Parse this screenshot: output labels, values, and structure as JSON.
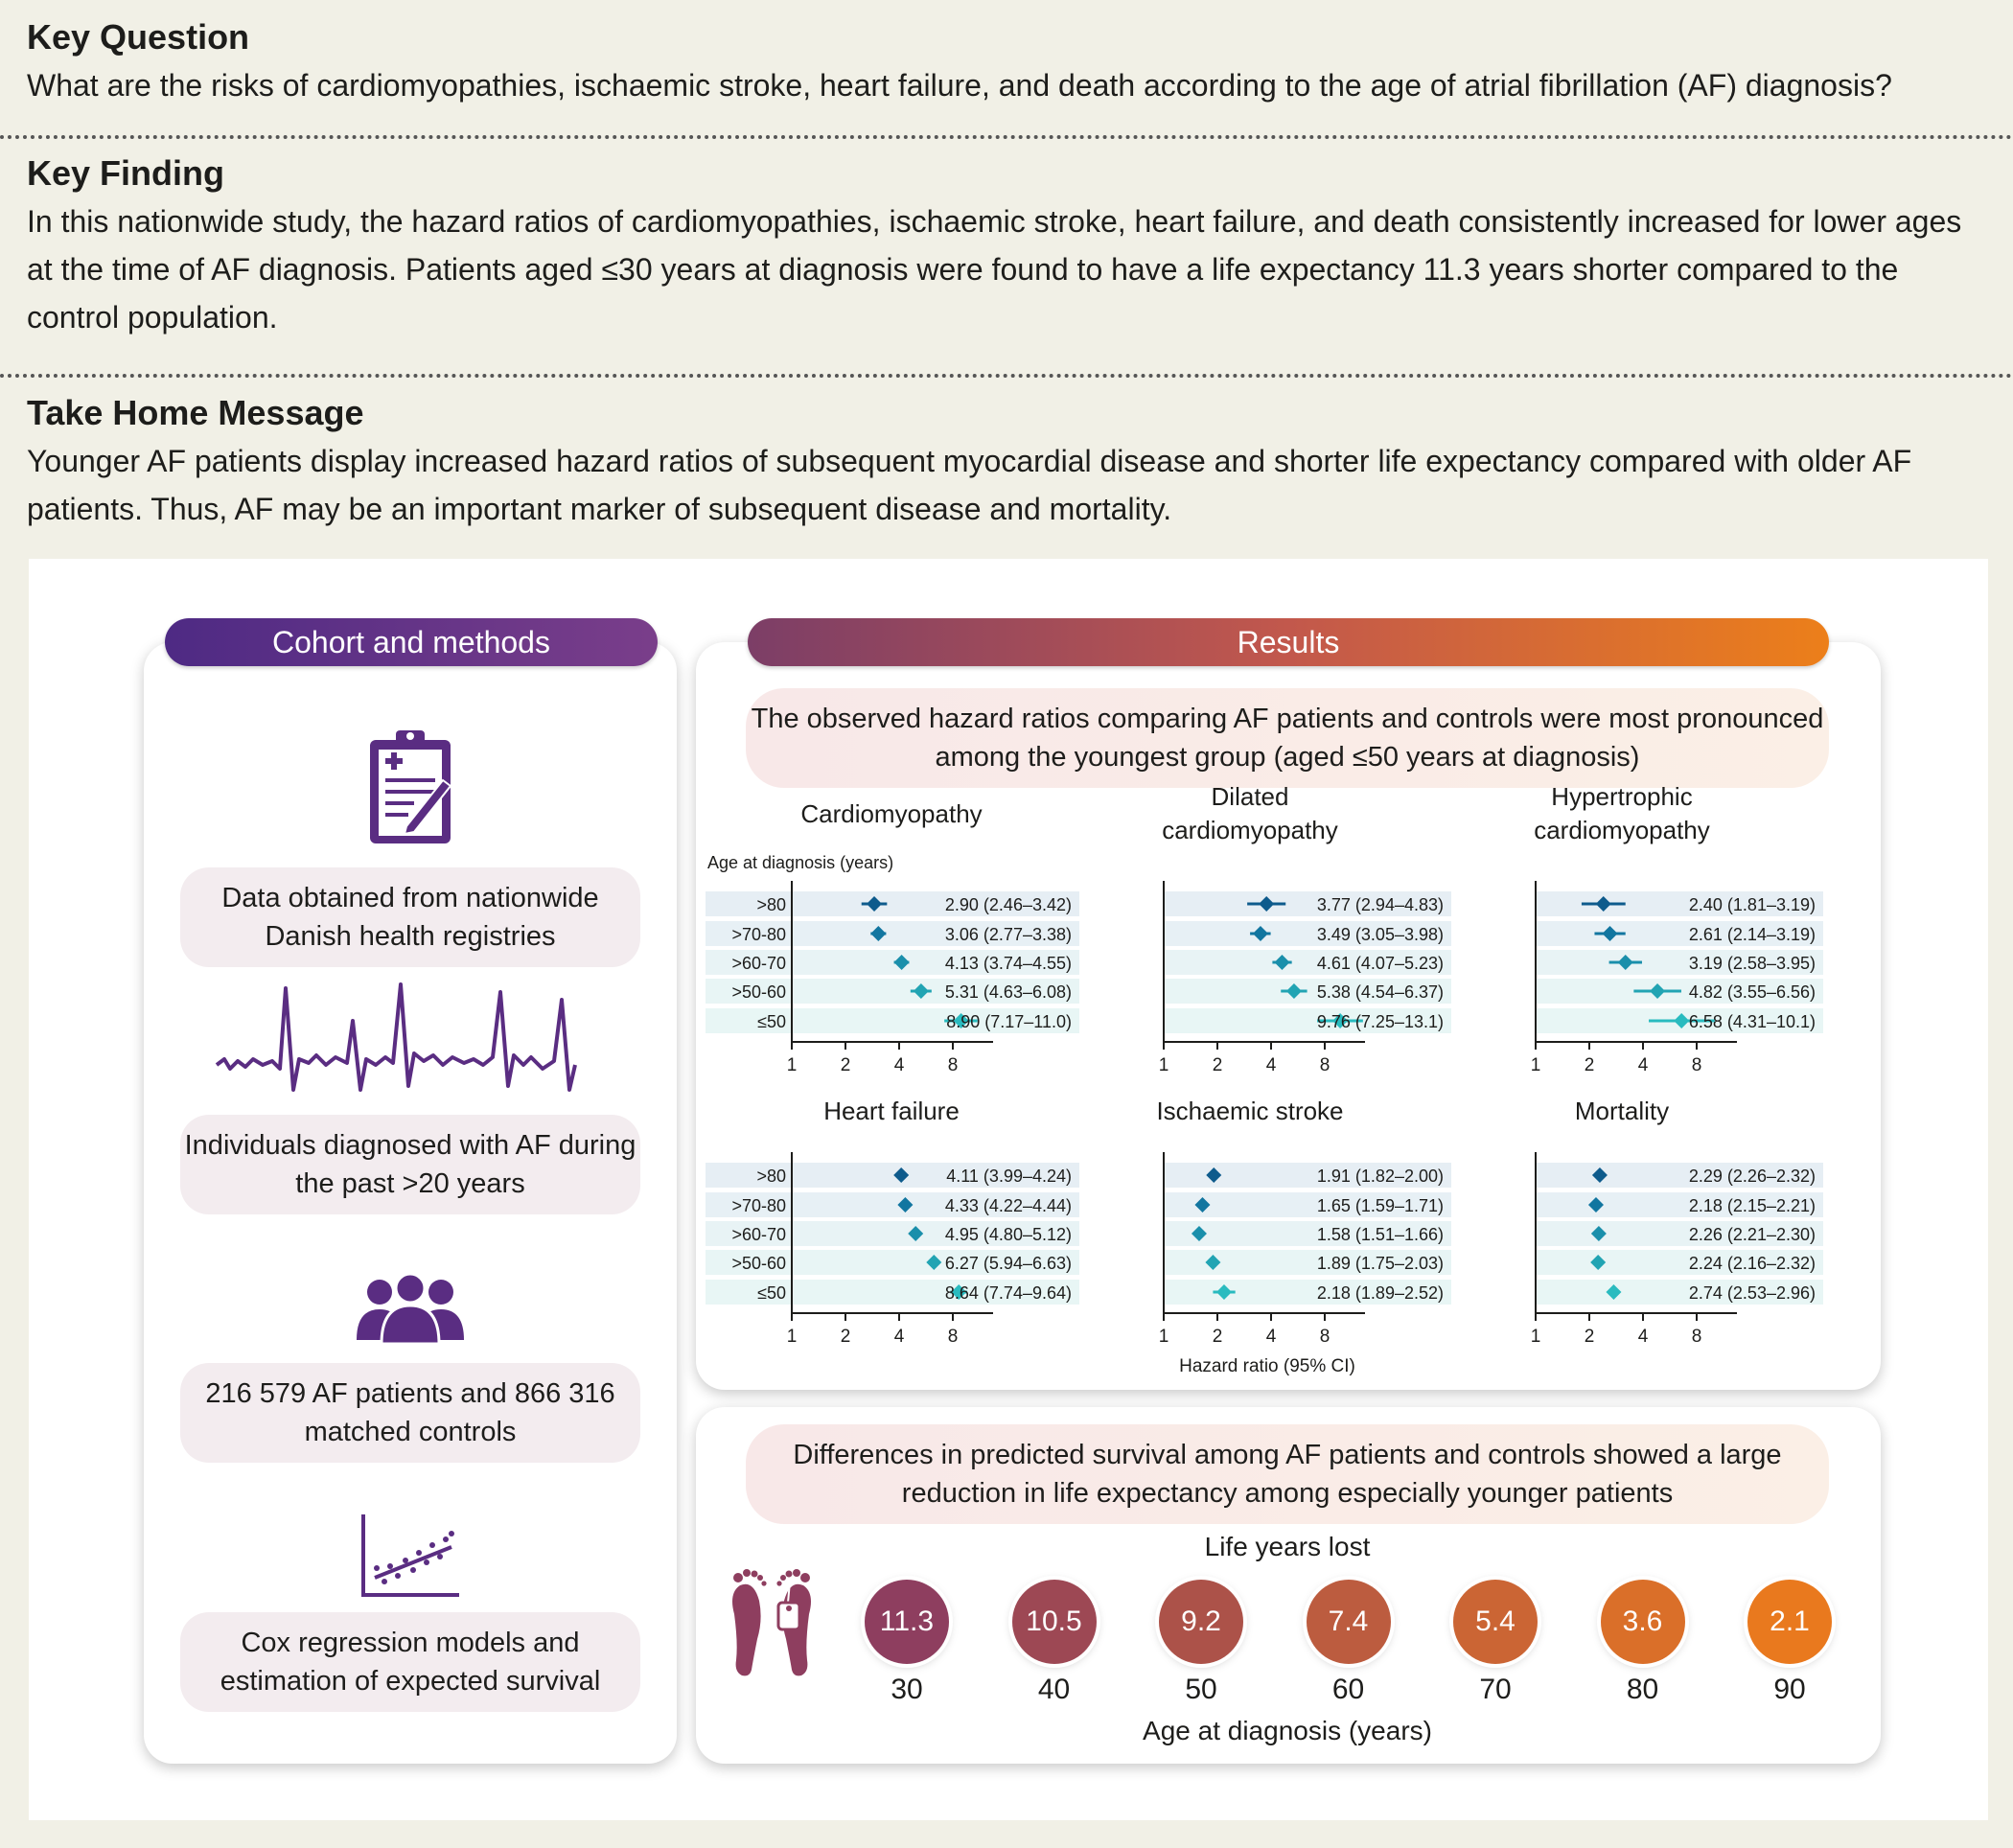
{
  "key_question": {
    "title": "Key Question",
    "text": "What are the risks of cardiomyopathies, ischaemic stroke, heart failure, and death according to the age of atrial fibrillation (AF) diagnosis?"
  },
  "key_finding": {
    "title": "Key Finding",
    "text": "In this nationwide study, the hazard ratios of cardiomyopathies, ischaemic stroke, heart failure, and death consistently increased for lower ages at the time of AF diagnosis. Patients aged ≤30 years at diagnosis were found to have a life expectancy 11.3 years shorter compared to the control population."
  },
  "take_home": {
    "title": "Take Home Message",
    "text": "Younger AF patients display increased hazard ratios of subsequent myocardial disease and shorter life expectancy compared with older AF patients. Thus, AF may be an important marker of subsequent disease and mortality."
  },
  "cohort": {
    "header": "Cohort and methods",
    "items": [
      {
        "icon": "clipboard-icon",
        "text": "Data obtained from nationwide Danish health registries"
      },
      {
        "icon": "ecg-icon",
        "text": "Individuals diagnosed with AF during the past >20 years"
      },
      {
        "icon": "people-icon",
        "text": "216 579 AF patients and 866 316 matched controls"
      },
      {
        "icon": "regression-chart-icon",
        "text": "Cox regression models and estimation of expected survival"
      }
    ]
  },
  "results": {
    "header": "Results",
    "hr_summary": "The observed hazard ratios comparing AF patients and controls were most pronounced among the youngest group (aged ≤50 years at diagnosis)",
    "survival_summary": "Differences in predicted survival among AF patients and controls showed a large reduction in life expectancy among especially younger patients",
    "age_axis_label": "Age at diagnosis (years)",
    "hr_axis_label": "Hazard ratio (95% CI)",
    "life_years_title": "Life years lost",
    "life_years_xlabel": "Age at diagnosis (years)",
    "colors": {
      "purple": "#5a2d82",
      "rose": "#8e3e5f",
      "orange": "#e9791e",
      "dark_blue": "#0e5b8c",
      "teal": "#1fa8b4"
    }
  },
  "chart_data": [
    {
      "type": "scatter",
      "title": "Cardiomyopathy",
      "categories": [
        ">80",
        ">70-80",
        ">60-70",
        ">50-60",
        "≤50"
      ],
      "hr": [
        2.9,
        3.06,
        4.13,
        5.31,
        8.9
      ],
      "lo": [
        2.46,
        2.77,
        3.74,
        4.63,
        7.17
      ],
      "hi": [
        3.42,
        3.38,
        4.55,
        6.08,
        11.0
      ],
      "labels": [
        "2.90 (2.46–3.42)",
        "3.06 (2.77–3.38)",
        "4.13 (3.74–4.55)",
        "5.31 (4.63–6.08)",
        "8.90 (7.17–11.0)"
      ],
      "x_ticks": [
        "1",
        "2",
        "4",
        "8"
      ],
      "x_scale": "log2",
      "xlim": [
        1,
        12
      ]
    },
    {
      "type": "scatter",
      "title": "Dilated cardiomyopathy",
      "categories": [
        ">80",
        ">70-80",
        ">60-70",
        ">50-60",
        "≤50"
      ],
      "hr": [
        3.77,
        3.49,
        4.61,
        5.38,
        9.76
      ],
      "lo": [
        2.94,
        3.05,
        4.07,
        4.54,
        7.25
      ],
      "hi": [
        4.83,
        3.98,
        5.23,
        6.37,
        13.1
      ],
      "labels": [
        "3.77 (2.94–4.83)",
        "3.49 (3.05–3.98)",
        "4.61 (4.07–5.23)",
        "5.38 (4.54–6.37)",
        "9.76 (7.25–13.1)"
      ],
      "x_ticks": [
        "1",
        "2",
        "4",
        "8"
      ],
      "x_scale": "log2",
      "xlim": [
        1,
        12
      ]
    },
    {
      "type": "scatter",
      "title": "Hypertrophic cardiomyopathy",
      "categories": [
        ">80",
        ">70-80",
        ">60-70",
        ">50-60",
        "≤50"
      ],
      "hr": [
        2.4,
        2.61,
        3.19,
        4.82,
        6.58
      ],
      "lo": [
        1.81,
        2.14,
        2.58,
        3.55,
        4.31
      ],
      "hi": [
        3.19,
        3.19,
        3.95,
        6.56,
        10.1
      ],
      "labels": [
        "2.40 (1.81–3.19)",
        "2.61 (2.14–3.19)",
        "3.19 (2.58–3.95)",
        "4.82 (3.55–6.56)",
        "6.58 (4.31–10.1)"
      ],
      "x_ticks": [
        "1",
        "2",
        "4",
        "8"
      ],
      "x_scale": "log2",
      "xlim": [
        1,
        12
      ]
    },
    {
      "type": "scatter",
      "title": "Heart failure",
      "categories": [
        ">80",
        ">70-80",
        ">60-70",
        ">50-60",
        "≤50"
      ],
      "hr": [
        4.11,
        4.33,
        4.95,
        6.27,
        8.64
      ],
      "lo": [
        3.99,
        4.22,
        4.8,
        5.94,
        7.74
      ],
      "hi": [
        4.24,
        4.44,
        5.12,
        6.63,
        9.64
      ],
      "labels": [
        "4.11 (3.99–4.24)",
        "4.33 (4.22–4.44)",
        "4.95 (4.80–5.12)",
        "6.27 (5.94–6.63)",
        "8.64 (7.74–9.64)"
      ],
      "x_ticks": [
        "1",
        "2",
        "4",
        "8"
      ],
      "x_scale": "log2",
      "xlim": [
        1,
        12
      ]
    },
    {
      "type": "scatter",
      "title": "Ischaemic stroke",
      "categories": [
        ">80",
        ">70-80",
        ">60-70",
        ">50-60",
        "≤50"
      ],
      "hr": [
        1.91,
        1.65,
        1.58,
        1.89,
        2.18
      ],
      "lo": [
        1.82,
        1.59,
        1.51,
        1.75,
        1.89
      ],
      "hi": [
        2.0,
        1.71,
        1.66,
        2.03,
        2.52
      ],
      "labels": [
        "1.91 (1.82–2.00)",
        "1.65 (1.59–1.71)",
        "1.58 (1.51–1.66)",
        "1.89 (1.75–2.03)",
        "2.18 (1.89–2.52)"
      ],
      "x_ticks": [
        "1",
        "2",
        "4",
        "8"
      ],
      "x_scale": "log2",
      "xlim": [
        1,
        12
      ]
    },
    {
      "type": "scatter",
      "title": "Mortality",
      "categories": [
        ">80",
        ">70-80",
        ">60-70",
        ">50-60",
        "≤50"
      ],
      "hr": [
        2.29,
        2.18,
        2.26,
        2.24,
        2.74
      ],
      "lo": [
        2.26,
        2.15,
        2.21,
        2.16,
        2.53
      ],
      "hi": [
        2.32,
        2.21,
        2.3,
        2.32,
        2.96
      ],
      "labels": [
        "2.29 (2.26–2.32)",
        "2.18 (2.15–2.21)",
        "2.26 (2.21–2.30)",
        "2.24 (2.16–2.32)",
        "2.74 (2.53–2.96)"
      ],
      "x_ticks": [
        "1",
        "2",
        "4",
        "8"
      ],
      "x_scale": "log2",
      "xlim": [
        1,
        12
      ]
    },
    {
      "type": "bar",
      "title": "Life years lost",
      "categories": [
        "30",
        "40",
        "50",
        "60",
        "70",
        "80",
        "90"
      ],
      "values": [
        11.3,
        10.5,
        9.2,
        7.4,
        5.4,
        3.6,
        2.1
      ],
      "xlabel": "Age at diagnosis (years)"
    }
  ]
}
